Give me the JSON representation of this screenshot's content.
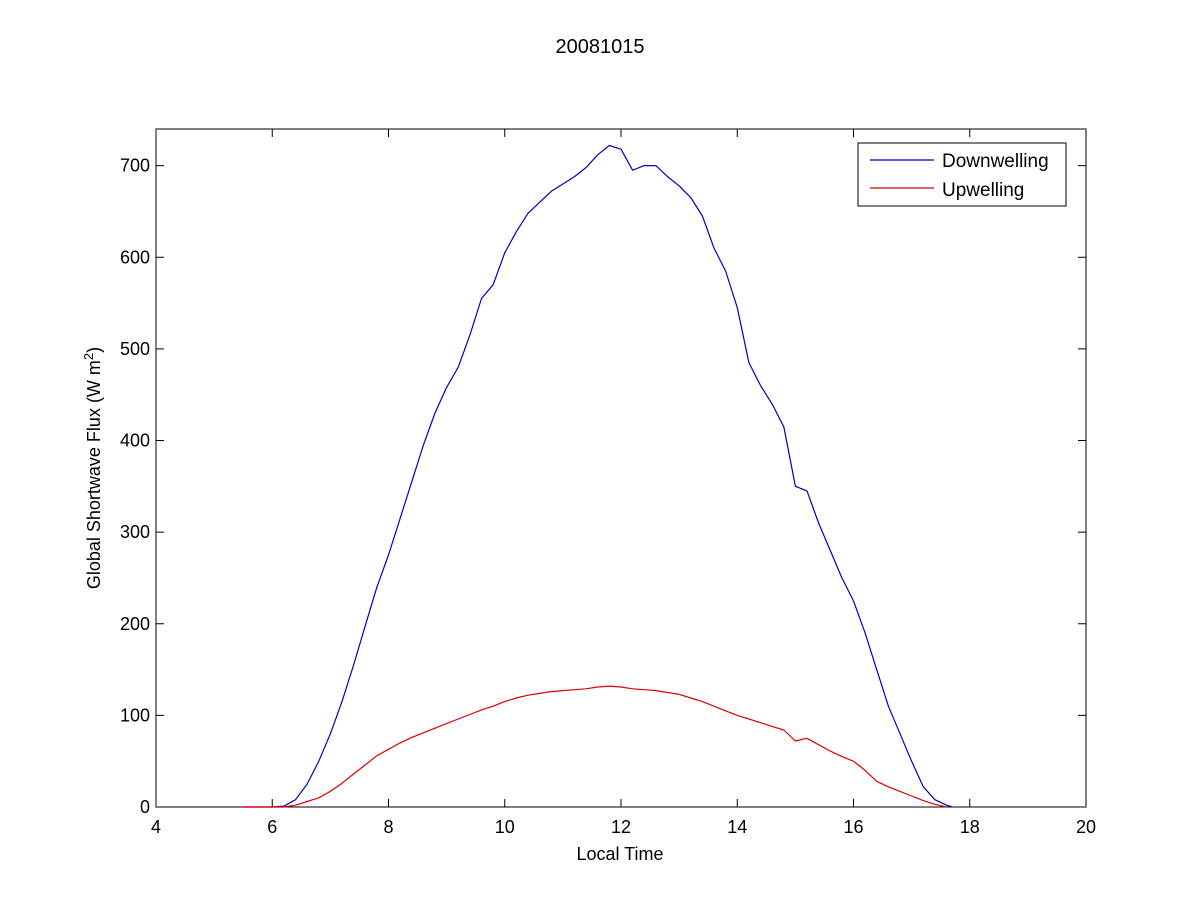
{
  "chart_data": {
    "type": "line",
    "title": "20081015",
    "xlabel": "Local Time",
    "ylabel_text": "Global Shortwave Flux (W m",
    "ylabel_sup": "2",
    "ylabel_close": ")",
    "xlim": [
      4,
      20
    ],
    "ylim": [
      0,
      740
    ],
    "xticks": [
      4,
      6,
      8,
      10,
      12,
      14,
      16,
      18,
      20
    ],
    "yticks": [
      0,
      100,
      200,
      300,
      400,
      500,
      600,
      700
    ],
    "grid": false,
    "legend_position": "top-right",
    "series": [
      {
        "name": "Downwelling",
        "color": "#0000bb",
        "x": [
          5.5,
          6.0,
          6.2,
          6.4,
          6.6,
          6.8,
          7.0,
          7.2,
          7.4,
          7.6,
          7.8,
          8.0,
          8.2,
          8.4,
          8.6,
          8.8,
          9.0,
          9.2,
          9.4,
          9.6,
          9.8,
          10.0,
          10.2,
          10.4,
          10.6,
          10.8,
          11.0,
          11.2,
          11.4,
          11.6,
          11.8,
          12.0,
          12.2,
          12.4,
          12.6,
          12.8,
          13.0,
          13.2,
          13.4,
          13.6,
          13.8,
          14.0,
          14.2,
          14.4,
          14.6,
          14.8,
          15.0,
          15.2,
          15.4,
          15.6,
          15.8,
          16.0,
          16.2,
          16.4,
          16.6,
          16.8,
          17.0,
          17.2,
          17.4,
          17.6,
          17.7
        ],
        "y": [
          0,
          0,
          1,
          8,
          25,
          50,
          80,
          115,
          155,
          198,
          240,
          275,
          315,
          355,
          395,
          430,
          458,
          480,
          515,
          555,
          570,
          605,
          628,
          648,
          660,
          672,
          680,
          688,
          698,
          712,
          722,
          718,
          695,
          700,
          700,
          688,
          678,
          665,
          645,
          610,
          585,
          545,
          485,
          460,
          440,
          415,
          350,
          345,
          310,
          280,
          250,
          225,
          190,
          150,
          110,
          80,
          50,
          22,
          8,
          2,
          0
        ]
      },
      {
        "name": "Upwelling",
        "color": "#dd0000",
        "x": [
          5.5,
          6.0,
          6.2,
          6.4,
          6.6,
          6.8,
          7.0,
          7.2,
          7.4,
          7.6,
          7.8,
          8.0,
          8.2,
          8.4,
          8.6,
          8.8,
          9.0,
          9.2,
          9.4,
          9.6,
          9.8,
          10.0,
          10.2,
          10.4,
          10.6,
          10.8,
          11.0,
          11.2,
          11.4,
          11.6,
          11.8,
          12.0,
          12.2,
          12.4,
          12.6,
          12.8,
          13.0,
          13.2,
          13.4,
          13.6,
          13.8,
          14.0,
          14.2,
          14.4,
          14.6,
          14.8,
          15.0,
          15.2,
          15.4,
          15.6,
          15.8,
          16.0,
          16.2,
          16.4,
          16.6,
          16.8,
          17.0,
          17.2,
          17.4,
          17.6
        ],
        "y": [
          0,
          0,
          0,
          2,
          6,
          10,
          17,
          26,
          36,
          46,
          56,
          63,
          70,
          76,
          81,
          86,
          91,
          96,
          101,
          106,
          110,
          115,
          119,
          122,
          124,
          126,
          127,
          128,
          129,
          131,
          132,
          131,
          129,
          128,
          127,
          125,
          123,
          119,
          115,
          110,
          105,
          100,
          96,
          92,
          88,
          84,
          72,
          75,
          68,
          61,
          55,
          50,
          40,
          28,
          22,
          17,
          12,
          7,
          3,
          0
        ]
      }
    ]
  }
}
